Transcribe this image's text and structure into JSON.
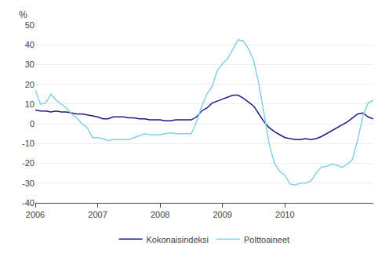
{
  "chart_data": {
    "type": "line",
    "ylabel": "%",
    "x": [
      2006,
      2006.0833333333333,
      2006.1666666666667,
      2006.25,
      2006.3333333333333,
      2006.4166666666667,
      2006.5,
      2006.5833333333333,
      2006.6666666666667,
      2006.75,
      2006.8333333333333,
      2006.9166666666667,
      2007,
      2007.0833333333333,
      2007.1666666666667,
      2007.25,
      2007.3333333333333,
      2007.4166666666667,
      2007.5,
      2007.5833333333333,
      2007.6666666666667,
      2007.75,
      2007.8333333333333,
      2007.9166666666667,
      2008,
      2008.0833333333333,
      2008.1666666666667,
      2008.25,
      2008.3333333333333,
      2008.4166666666667,
      2008.5,
      2008.5833333333333,
      2008.6666666666667,
      2008.75,
      2008.8333333333333,
      2008.9166666666667,
      2009,
      2009.0833333333333,
      2009.1666666666667,
      2009.25,
      2009.3333333333333,
      2009.4166666666667,
      2009.5,
      2009.5833333333333,
      2009.6666666666667,
      2009.75,
      2009.8333333333333,
      2009.9166666666667,
      2010,
      2010.0833333333333,
      2010.1666666666667,
      2010.25,
      2010.3333333333333,
      2010.4166666666667,
      2010.5,
      2010.5833333333333,
      2010.6666666666667,
      2010.75,
      2010.8333333333333,
      2010.9166666666667,
      2011,
      2011.0833333333333,
      2011.1666666666667,
      2011.25,
      2011.3333333333333,
      2011.4166666666667
    ],
    "xlim": [
      2006,
      2011.4166666666667
    ],
    "xticks": [
      2006,
      2007,
      2008,
      2009,
      2010
    ],
    "ylim": [
      -40,
      50
    ],
    "yticks": [
      -40,
      -30,
      -20,
      -10,
      0,
      10,
      20,
      30,
      40,
      50
    ],
    "grid": true,
    "legend": "bottom",
    "series": [
      {
        "name": "Kokonaisindeksi",
        "color": "#1a1a8c",
        "values": [
          7.0,
          6.5,
          6.5,
          6.0,
          6.5,
          6.0,
          6.0,
          5.5,
          5.0,
          5.0,
          4.5,
          4.0,
          3.5,
          2.5,
          2.5,
          3.5,
          3.5,
          3.5,
          3.0,
          3.0,
          2.5,
          2.5,
          2.0,
          2.0,
          2.0,
          1.5,
          1.5,
          2.0,
          2.0,
          2.0,
          2.0,
          3.5,
          6.5,
          8.0,
          10.5,
          11.5,
          12.5,
          13.5,
          14.5,
          14.5,
          13.0,
          11.0,
          9.0,
          5.0,
          1.0,
          -2.0,
          -4.0,
          -5.5,
          -7.0,
          -7.5,
          -8.0,
          -8.0,
          -7.5,
          -8.0,
          -7.5,
          -6.5,
          -5.0,
          -3.5,
          -2.0,
          -0.5,
          1.0,
          3.0,
          5.0,
          5.5,
          3.5,
          2.5
        ]
      },
      {
        "name": "Polttoaineet",
        "color": "#87CEEB",
        "values": [
          17.0,
          10.0,
          10.5,
          15.0,
          12.0,
          10.0,
          8.0,
          5.0,
          3.0,
          0.0,
          -2.0,
          -7.0,
          -7.0,
          -7.5,
          -8.5,
          -8.0,
          -8.0,
          -8.0,
          -8.0,
          -7.0,
          -6.0,
          -5.0,
          -5.5,
          -5.5,
          -5.5,
          -5.0,
          -4.5,
          -5.0,
          -5.0,
          -5.0,
          -5.0,
          1.0,
          9.0,
          15.0,
          19.0,
          27.0,
          30.5,
          33.0,
          38.0,
          42.5,
          42.0,
          38.0,
          32.0,
          20.0,
          5.0,
          -10.5,
          -20.0,
          -24.0,
          -26.0,
          -30.5,
          -31.0,
          -30.0,
          -30.0,
          -29.0,
          -25.0,
          -22.0,
          -21.5,
          -20.5,
          -21.0,
          -22.0,
          -20.5,
          -18.0,
          -8.0,
          4.0,
          10.5,
          12.0
        ]
      }
    ]
  }
}
